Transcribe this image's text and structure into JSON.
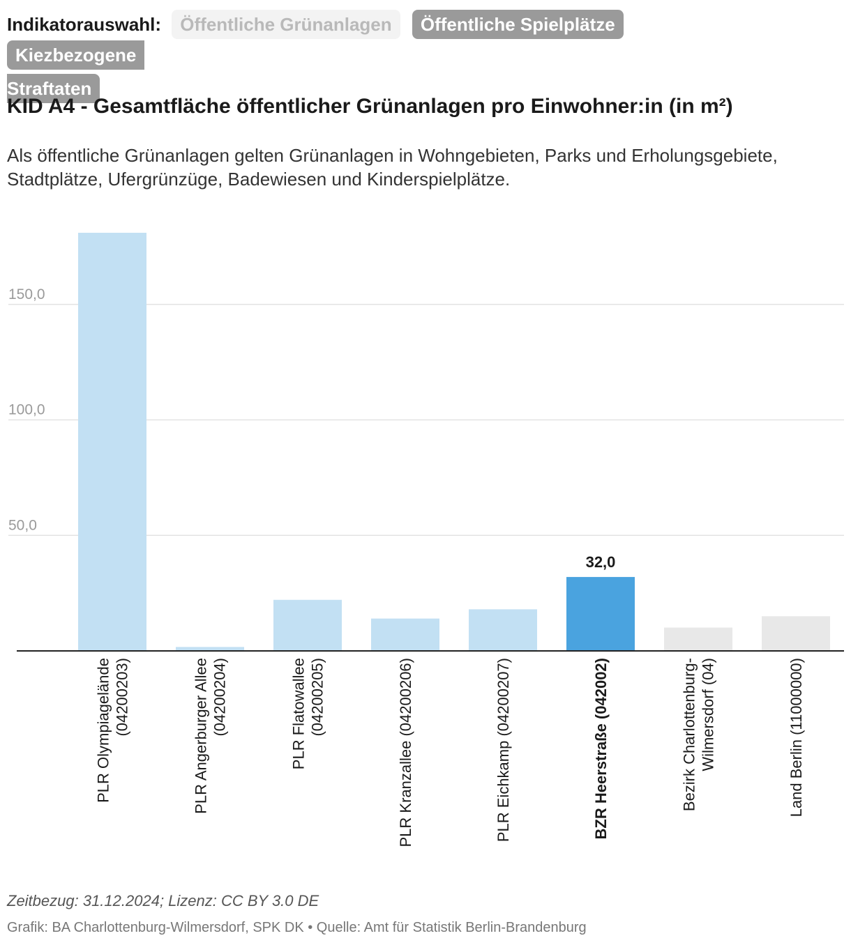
{
  "selector": {
    "label": "Indikatorauswahl:",
    "buttons": [
      {
        "label": "Öffentliche Grünanlagen",
        "active": true
      },
      {
        "label": "Öffentliche Spielplätze",
        "active": false
      },
      {
        "label": "Kiezbezogene",
        "label_cont": "Straftaten",
        "active": false
      }
    ]
  },
  "chart_data": {
    "type": "bar",
    "title": "KID A4 - Gesamtfläche öffentlicher Grünanlagen pro Einwohner:in (in m²)",
    "subtitle": "Als öffentliche Grünanlagen gelten Grünanlagen in Wohngebieten, Parks und Erholungsgebiete, Stadtplätze, Ufergrünzüge, Badewiesen und Kinderspielplätze.",
    "categories": [
      {
        "lines": [
          "PLR Olympiagelände",
          "(04200203)"
        ],
        "value": 181,
        "color": "#c2e0f3",
        "bold": false
      },
      {
        "lines": [
          "PLR Angerburger Allee",
          "(04200204)"
        ],
        "value": 1.7,
        "color": "#c2e0f3",
        "bold": false
      },
      {
        "lines": [
          "PLR Flatowallee",
          "(04200205)"
        ],
        "value": 22.1,
        "color": "#c2e0f3",
        "bold": false
      },
      {
        "lines": [
          "PLR Kranzallee (04200206)"
        ],
        "value": 14,
        "color": "#c2e0f3",
        "bold": false
      },
      {
        "lines": [
          "PLR Eichkamp (04200207)"
        ],
        "value": 18,
        "color": "#c2e0f3",
        "bold": false
      },
      {
        "lines": [
          "BZR Heerstraße (042002)"
        ],
        "value": 32.0,
        "color": "#4aa3df",
        "bold": true,
        "data_label": "32,0"
      },
      {
        "lines": [
          "Bezirk Charlottenburg-",
          "Wilmersdorf (04)"
        ],
        "value": 10.1,
        "color": "#e8e8e8",
        "bold": false
      },
      {
        "lines": [
          "Land Berlin (11000000)"
        ],
        "value": 15,
        "color": "#e8e8e8",
        "bold": false
      }
    ],
    "yticks": [
      {
        "value": 50,
        "label": "50,0"
      },
      {
        "value": 100,
        "label": "100,0"
      },
      {
        "value": 150,
        "label": "150,0"
      }
    ],
    "ylim": [
      0,
      181
    ]
  },
  "footer": {
    "note": "Zeitbezug: 31.12.2024; Lizenz: CC BY 3.0 DE",
    "source": "Grafik: BA Charlottenburg-Wilmersdorf, SPK DK • Quelle: Amt für Statistik Berlin-Brandenburg"
  }
}
